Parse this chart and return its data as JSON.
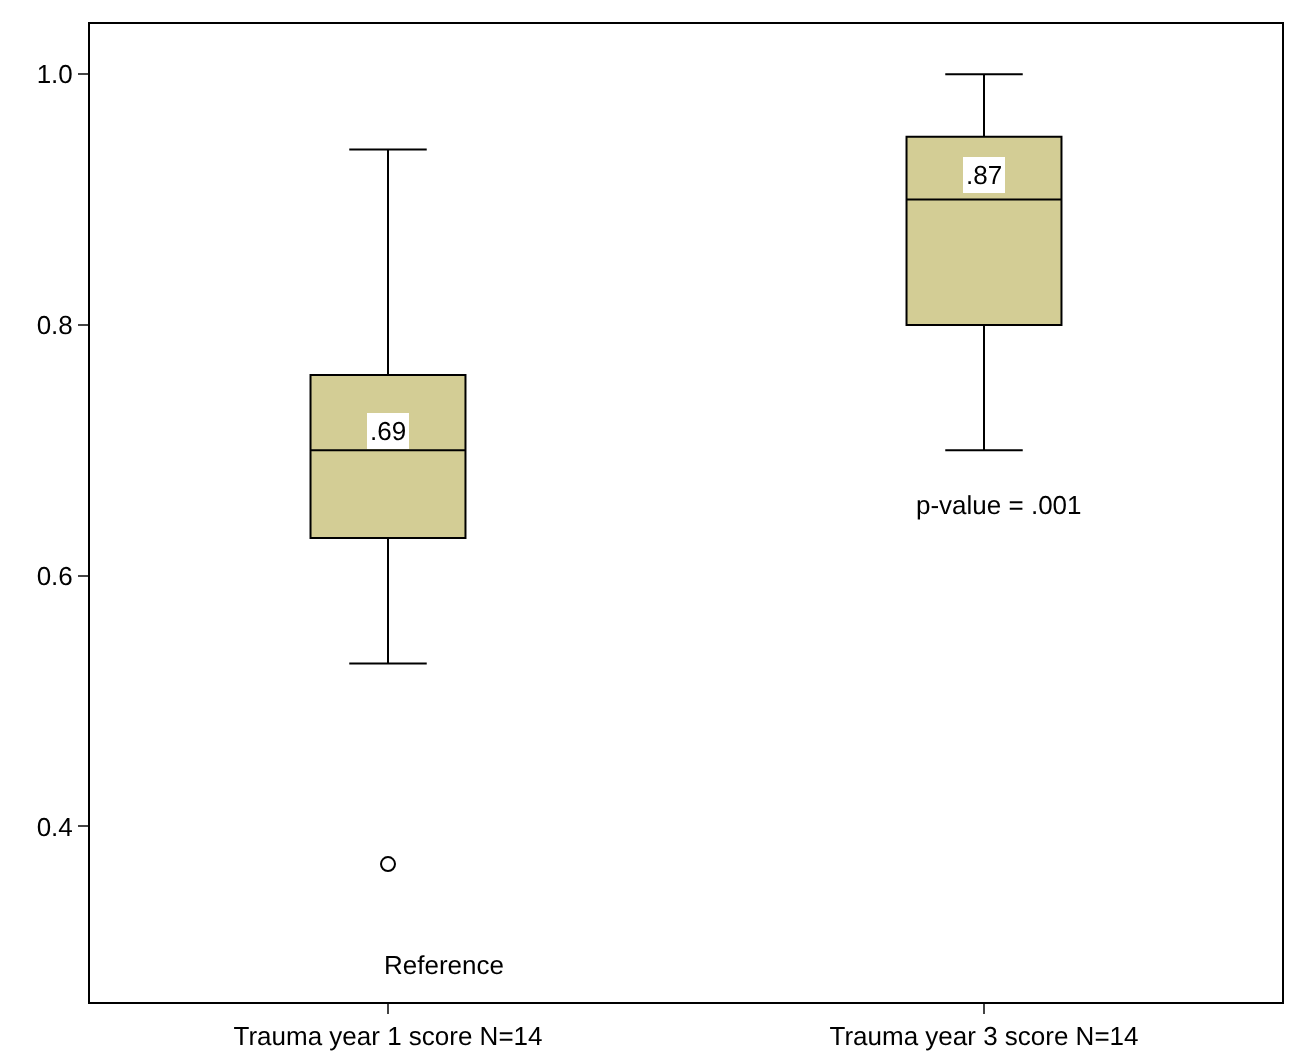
{
  "chart_data": {
    "type": "box",
    "categories": [
      "Trauma year 1 score N=14",
      "Trauma year 3 score N=14"
    ],
    "boxes": [
      {
        "low": 0.53,
        "q1": 0.63,
        "median": 0.7,
        "q3": 0.76,
        "high": 0.94,
        "outliers": [
          0.37
        ]
      },
      {
        "low": 0.7,
        "q1": 0.8,
        "median": 0.9,
        "q3": 0.95,
        "high": 1.0
      }
    ],
    "color": "#d3cd95",
    "ylim": [
      0.26,
      1.04
    ],
    "yticks": [
      {
        "value": 0.4,
        "label": "0.4"
      },
      {
        "value": 0.6,
        "label": "0.6"
      },
      {
        "value": 0.8,
        "label": "0.8"
      },
      {
        "value": 1.0,
        "label": "1.0"
      }
    ],
    "annotations": [
      {
        "text": ".69",
        "x": "Trauma year 1 score N=14",
        "y": 0.715
      },
      {
        "text": ".87",
        "x": "Trauma year 3 score N=14",
        "y": 0.92
      },
      "p-value = .001",
      "Reference"
    ],
    "ylabel": null
  }
}
